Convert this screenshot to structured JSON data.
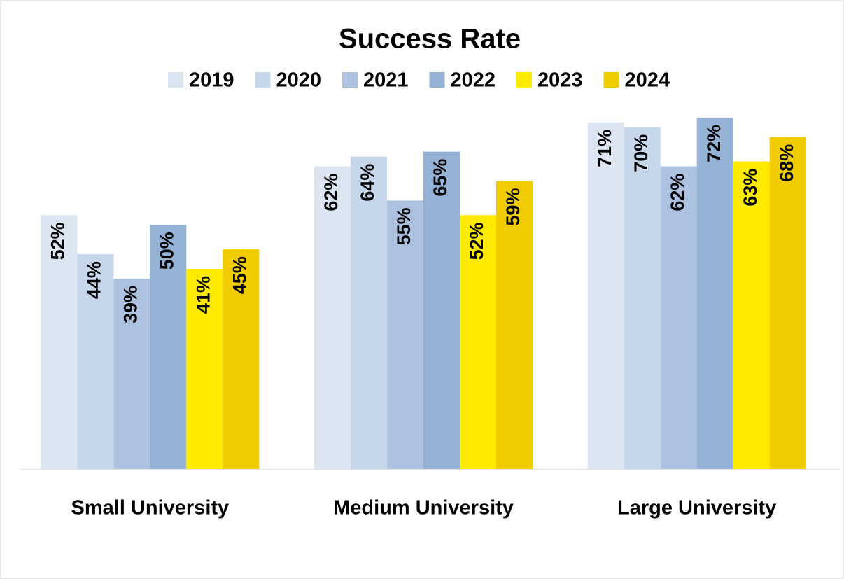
{
  "chart_data": {
    "type": "bar",
    "title": "Success Rate",
    "categories": [
      "Small University",
      "Medium University",
      "Large University"
    ],
    "series": [
      {
        "name": "2019",
        "color": "#dce6f2",
        "values": [
          52,
          62,
          71
        ],
        "value_labels": [
          "52%",
          "62%",
          "71%"
        ]
      },
      {
        "name": "2020",
        "color": "#c6d6eb",
        "values": [
          44,
          64,
          70
        ],
        "value_labels": [
          "44%",
          "64%",
          "70%"
        ]
      },
      {
        "name": "2021",
        "color": "#adc2e1",
        "values": [
          39,
          55,
          62
        ],
        "value_labels": [
          "39%",
          "55%",
          "62%"
        ]
      },
      {
        "name": "2022",
        "color": "#95b3d7",
        "values": [
          50,
          65,
          72
        ],
        "value_labels": [
          "50%",
          "65%",
          "72%"
        ]
      },
      {
        "name": "2023",
        "color": "#ffea00",
        "values": [
          41,
          52,
          63
        ],
        "value_labels": [
          "41%",
          "52%",
          "63%"
        ]
      },
      {
        "name": "2024",
        "color": "#f0cc00",
        "values": [
          45,
          59,
          68
        ],
        "value_labels": [
          "45%",
          "59%",
          "68%"
        ]
      }
    ],
    "ylim": [
      0,
      80
    ],
    "legend": "top"
  }
}
